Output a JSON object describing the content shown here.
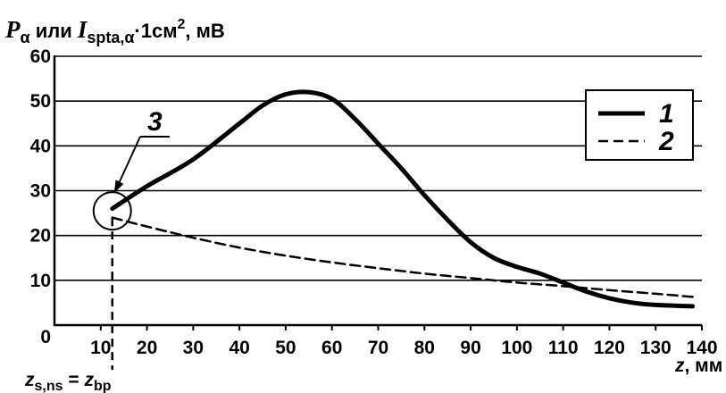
{
  "chart_data": {
    "type": "line",
    "ylabel": {
      "var_p": "P",
      "sub_alpha": "α",
      "mid": " или ",
      "var_i": "I",
      "sub_spta": "spta,α",
      "unit_pre": "·1см",
      "sup_2": "2",
      "unit_post": ", мВ"
    },
    "xlabel": {
      "var": "z",
      "unit": ", мм"
    },
    "xlim": [
      0,
      140
    ],
    "ylim": [
      0,
      60
    ],
    "x_ticks": [
      "10",
      "20",
      "30",
      "40",
      "50",
      "60",
      "70",
      "80",
      "90",
      "100",
      "110",
      "120",
      "130",
      "140"
    ],
    "y_ticks": [
      "0",
      "10",
      "20",
      "30",
      "40",
      "50",
      "60"
    ],
    "grid": "horizontal",
    "legend_position": "top-right",
    "series": [
      {
        "name": "1",
        "style": "solid",
        "color": "#000000",
        "x": [
          12.5,
          20,
          30,
          40,
          45,
          50,
          55,
          60,
          65,
          70,
          75,
          80,
          85,
          90,
          95,
          100,
          105,
          110,
          115,
          120,
          125,
          130,
          138
        ],
        "y": [
          26,
          31,
          37,
          45,
          49,
          51.5,
          52,
          50.5,
          46,
          40.5,
          35,
          29,
          23.5,
          18.5,
          15,
          13,
          11.5,
          9.5,
          7.5,
          6,
          5,
          4.5,
          4.2
        ]
      },
      {
        "name": "2",
        "style": "dashed",
        "color": "#000000",
        "x": [
          12.5,
          20,
          30,
          40,
          50,
          60,
          70,
          80,
          90,
          100,
          110,
          120,
          130,
          138
        ],
        "y": [
          24,
          22,
          19.5,
          17.3,
          15.5,
          14,
          12.7,
          11.5,
          10.5,
          9.5,
          8.7,
          7.8,
          7,
          6.3
        ]
      }
    ],
    "annotations": {
      "marker_label": "3",
      "marker_point": {
        "x": 12.5,
        "y": 25.5
      },
      "z_label": {
        "var_left": "z",
        "sub_left": "s,ns",
        "eq": " = ",
        "var_right": "z",
        "sub_right": "bp"
      }
    }
  }
}
